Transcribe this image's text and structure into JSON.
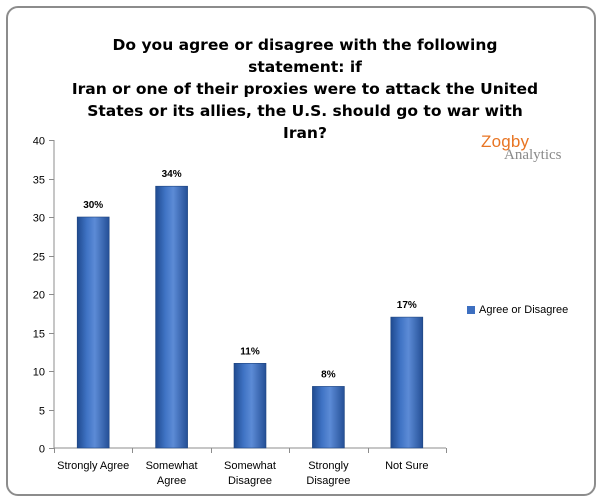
{
  "chart_data": {
    "type": "bar",
    "title": "Do you agree or disagree with the following statement: if Iran or one of their proxies were to attack the United States or its allies, the U.S. should go to war with Iran?",
    "title_lines": [
      "Do you agree or disagree with the following statement: if",
      "Iran or one of their proxies were to attack the United",
      "States or its allies, the U.S. should go to war with Iran?"
    ],
    "categories": [
      [
        "Strongly Agree"
      ],
      [
        "Somewhat",
        "Agree"
      ],
      [
        "Somewhat",
        "Disagree"
      ],
      [
        "Strongly",
        "Disagree"
      ],
      [
        "Not Sure"
      ]
    ],
    "series": [
      {
        "name": "Agree or Disagree",
        "values": [
          30,
          34,
          11,
          8,
          17
        ],
        "labels": [
          "30%",
          "34%",
          "11%",
          "8%",
          "17%"
        ],
        "color": "#3d6fc0"
      }
    ],
    "ylim": [
      0,
      40
    ],
    "yticks": [
      0,
      5,
      10,
      15,
      20,
      25,
      30,
      35,
      40
    ],
    "xlabel": "",
    "ylabel": "",
    "grid": false,
    "legend_position": "right"
  },
  "logo": {
    "line1": "Zogby",
    "line2": "Analytics"
  }
}
